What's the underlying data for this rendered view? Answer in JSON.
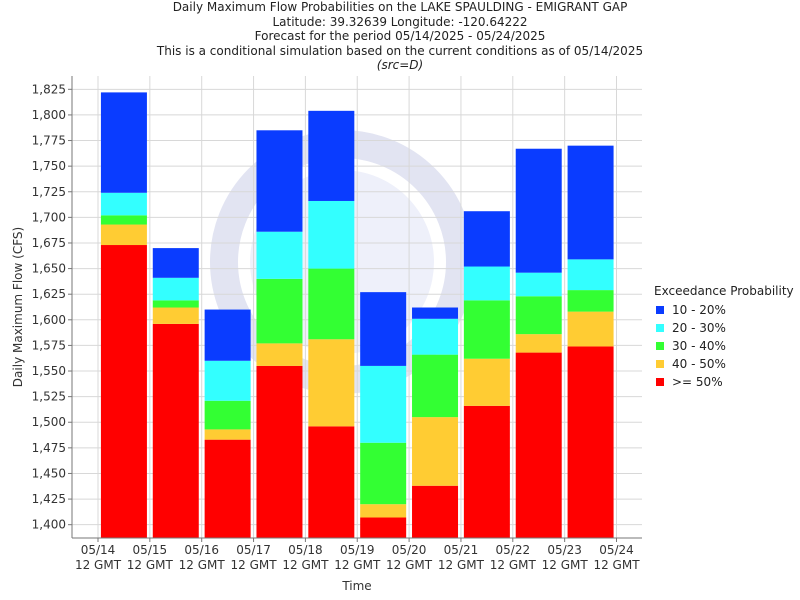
{
  "titles": {
    "line1": "Daily Maximum Flow Probabilities on the LAKE SPAULDING - EMIGRANT GAP",
    "line2": "Latitude: 39.32639 Longitude: -120.64222",
    "line3": "Forecast for the period 05/14/2025 - 05/24/2025",
    "line4": "This is a conditional simulation based on the current conditions as of 05/14/2025",
    "line5": "(src=D)"
  },
  "chart_data": {
    "type": "bar",
    "stacked_ranges": true,
    "title": "Daily Maximum Flow Probabilities on the LAKE SPAULDING - EMIGRANT GAP",
    "xlabel": "Time",
    "ylabel": "Daily Maximum Flow (CFS)",
    "ylim": [
      1387,
      1838
    ],
    "yticks": [
      1400,
      1425,
      1450,
      1475,
      1500,
      1525,
      1550,
      1575,
      1600,
      1625,
      1650,
      1675,
      1700,
      1725,
      1750,
      1775,
      1800,
      1825
    ],
    "ytick_labels": [
      "1,400",
      "1,425",
      "1,450",
      "1,475",
      "1,500",
      "1,525",
      "1,550",
      "1,575",
      "1,600",
      "1,625",
      "1,650",
      "1,675",
      "1,700",
      "1,725",
      "1,750",
      "1,775",
      "1,800",
      "1,825"
    ],
    "xticks": [
      {
        "line1": "05/14",
        "line2": "12 GMT"
      },
      {
        "line1": "05/15",
        "line2": "12 GMT"
      },
      {
        "line1": "05/16",
        "line2": "12 GMT"
      },
      {
        "line1": "05/17",
        "line2": "12 GMT"
      },
      {
        "line1": "05/18",
        "line2": "12 GMT"
      },
      {
        "line1": "05/19",
        "line2": "12 GMT"
      },
      {
        "line1": "05/20",
        "line2": "12 GMT"
      },
      {
        "line1": "05/21",
        "line2": "12 GMT"
      },
      {
        "line1": "05/22",
        "line2": "12 GMT"
      },
      {
        "line1": "05/23",
        "line2": "12 GMT"
      },
      {
        "line1": "05/24",
        "line2": "12 GMT"
      }
    ],
    "legend_title": "Exceedance Probability",
    "legend_position": "right",
    "grid": true,
    "series": [
      {
        "name": "10 - 20%",
        "color": "#0a3cff"
      },
      {
        "name": "20 - 30%",
        "color": "#33ffff"
      },
      {
        "name": "30 - 40%",
        "color": "#33ff33"
      },
      {
        "name": "40 - 50%",
        "color": "#ffcc33"
      },
      {
        "name": ">= 50%",
        "color": "#ff0000"
      }
    ],
    "days": [
      {
        "date": "05/14",
        "levels": [
          1673,
          1693,
          1702,
          1724,
          1822
        ]
      },
      {
        "date": "05/15",
        "levels": [
          1596,
          1612,
          1619,
          1641,
          1670
        ]
      },
      {
        "date": "05/16",
        "levels": [
          1483,
          1493,
          1521,
          1560,
          1610
        ]
      },
      {
        "date": "05/17",
        "levels": [
          1555,
          1577,
          1640,
          1686,
          1785
        ]
      },
      {
        "date": "05/18",
        "levels": [
          1496,
          1581,
          1650,
          1716,
          1804
        ]
      },
      {
        "date": "05/19",
        "levels": [
          1407,
          1420,
          1480,
          1555,
          1627
        ]
      },
      {
        "date": "05/20",
        "levels": [
          1438,
          1505,
          1566,
          1601,
          1612
        ]
      },
      {
        "date": "05/21",
        "levels": [
          1516,
          1562,
          1619,
          1652,
          1706
        ]
      },
      {
        "date": "05/22",
        "levels": [
          1568,
          1586,
          1623,
          1646,
          1767
        ]
      },
      {
        "date": "05/23",
        "levels": [
          1574,
          1608,
          1629,
          1659,
          1770
        ]
      }
    ]
  }
}
